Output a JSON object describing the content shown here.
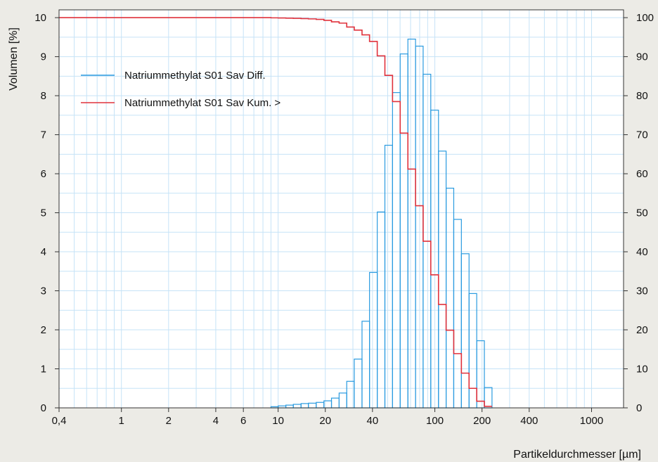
{
  "chart_data": {
    "type": "bar",
    "x_scale": "log",
    "xlim": [
      0.4,
      1600
    ],
    "ylim": [
      0,
      10.2
    ],
    "ylim_right": [
      0,
      102
    ],
    "grid": true,
    "xlabel": "Partikeldurchmesser [µm]",
    "ylabel": "Volumen [%]",
    "x_tick_labels": [
      "0,4",
      "1",
      "2",
      "4",
      "6",
      "10",
      "20",
      "40",
      "100",
      "200",
      "400",
      "1000"
    ],
    "x_tick_values": [
      0.4,
      1,
      2,
      4,
      6,
      10,
      20,
      40,
      100,
      200,
      400,
      1000
    ],
    "y_tick_labels": [
      "0",
      "1",
      "2",
      "3",
      "4",
      "5",
      "6",
      "7",
      "8",
      "9",
      "10"
    ],
    "y_tick_values": [
      0,
      1,
      2,
      3,
      4,
      5,
      6,
      7,
      8,
      9,
      10
    ],
    "y2_tick_labels": [
      "0",
      "10",
      "20",
      "30",
      "40",
      "50",
      "60",
      "70",
      "80",
      "90",
      "100"
    ],
    "y2_tick_values": [
      0,
      10,
      20,
      30,
      40,
      50,
      60,
      70,
      80,
      90,
      100
    ],
    "legend_position": "top-left",
    "bin_edges": [
      9,
      10,
      11.2,
      12.5,
      14,
      15.6,
      17.5,
      19.6,
      21.9,
      24.5,
      27.4,
      30.6,
      34.3,
      38.3,
      42.9,
      48,
      53.7,
      60.1,
      67.3,
      75.3,
      84.2,
      94.2,
      105.5,
      118,
      132,
      147.7,
      165.3,
      185,
      207,
      231.6
    ],
    "series": [
      {
        "name": "Natriummethylat S01 Sav Diff.",
        "color": "#2a9be0",
        "kind": "histogram",
        "values": [
          0.03,
          0.05,
          0.07,
          0.09,
          0.11,
          0.12,
          0.14,
          0.18,
          0.25,
          0.38,
          0.68,
          1.25,
          2.22,
          3.47,
          5.02,
          6.73,
          8.08,
          9.07,
          9.45,
          9.27,
          8.55,
          7.63,
          6.58,
          5.63,
          4.83,
          3.95,
          2.93,
          1.72,
          0.52,
          0.05
        ]
      },
      {
        "name": "Natriummethylat S01 Sav Kum. >",
        "color": "#e0323c",
        "kind": "cumulative_step",
        "x": [
          9,
          10,
          11.2,
          12.5,
          14,
          15.6,
          17.5,
          19.6,
          21.9,
          24.5,
          27.4,
          30.6,
          34.3,
          38.3,
          42.9,
          48,
          53.7,
          60.1,
          67.3,
          75.3,
          84.2,
          94.2,
          105.5,
          118,
          132,
          147.7,
          165.3,
          185,
          207
        ],
        "values": [
          99.95,
          99.92,
          99.88,
          99.82,
          99.75,
          99.68,
          99.55,
          99.3,
          98.92,
          98.6,
          97.6,
          96.8,
          95.6,
          93.9,
          90.2,
          85.2,
          78.5,
          70.4,
          61.2,
          51.8,
          42.7,
          34.1,
          26.5,
          19.9,
          13.9,
          8.9,
          5.0,
          1.7,
          0.4
        ]
      }
    ]
  }
}
